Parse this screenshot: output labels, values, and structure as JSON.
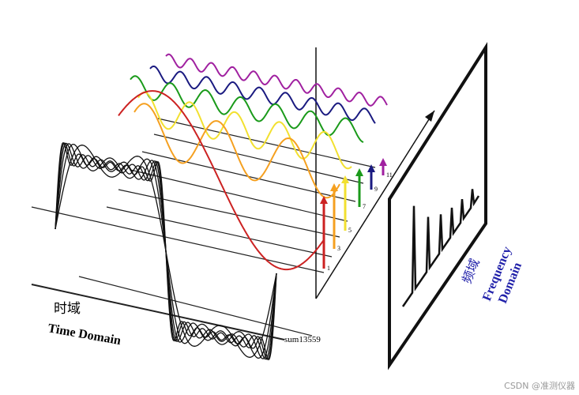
{
  "labels": {
    "time_cn": "时域",
    "time_en": "Time Domain",
    "freq_cn": "频域",
    "freq_en_1": "Frequency",
    "freq_en_2": "Domain",
    "sum": "sum13559",
    "harmonics": [
      "1",
      "3",
      "5",
      "7",
      "9",
      "11"
    ]
  },
  "watermark": "CSDN @准测仪器"
}
